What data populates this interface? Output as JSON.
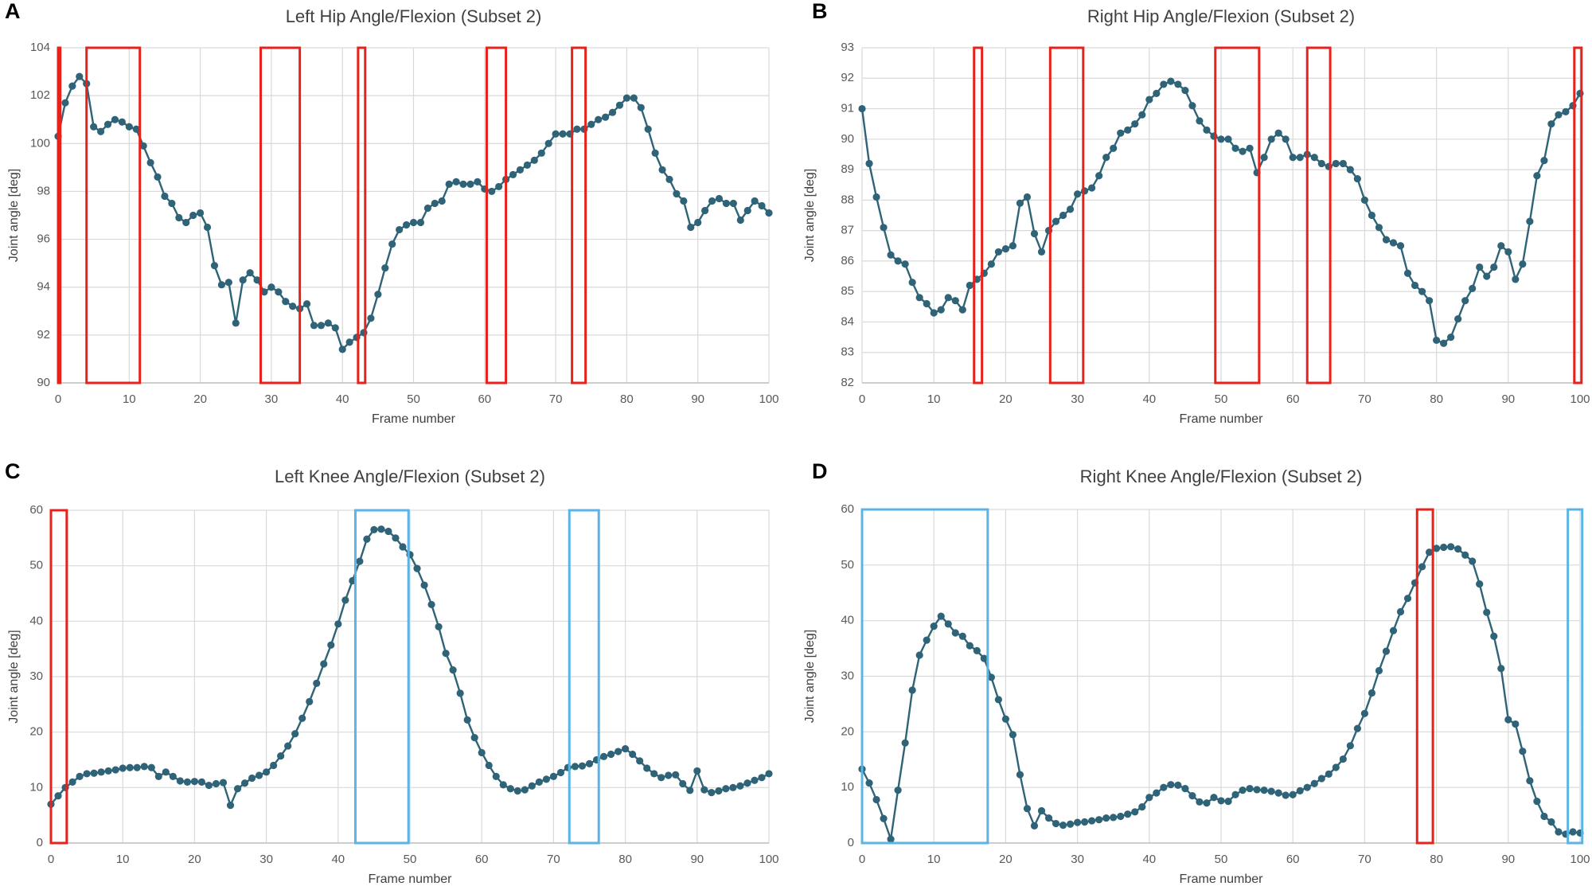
{
  "chart_data": [
    {
      "type": "line",
      "panel_label": "A",
      "title": "Left Hip Angle/Flexion  (Subset 2)",
      "x_label": "Frame number",
      "y_label": "Joint angle [deg]",
      "color": "#2f6478",
      "grid": true,
      "x": [
        0,
        1,
        2,
        3,
        4,
        5,
        6,
        7,
        8,
        9,
        10,
        11,
        12,
        13,
        14,
        15,
        16,
        17,
        18,
        19,
        20,
        21,
        22,
        23,
        24,
        25,
        26,
        27,
        28,
        29,
        30,
        31,
        32,
        33,
        34,
        35,
        36,
        37,
        38,
        39,
        40,
        41,
        42,
        43,
        44,
        45,
        46,
        47,
        48,
        49,
        50,
        51,
        52,
        53,
        54,
        55,
        56,
        57,
        58,
        59,
        60,
        61,
        62,
        63,
        64,
        65,
        66,
        67,
        68,
        69,
        70,
        71,
        72,
        73,
        74,
        75,
        76,
        77,
        78,
        79,
        80,
        81,
        82,
        83,
        84,
        85,
        86,
        87,
        88,
        89,
        90,
        91,
        92,
        93,
        94,
        95,
        96,
        97,
        98,
        99,
        100
      ],
      "values": [
        100.3,
        101.7,
        102.4,
        102.8,
        102.5,
        100.7,
        100.5,
        100.8,
        101.0,
        100.9,
        100.7,
        100.6,
        99.9,
        99.2,
        98.6,
        97.8,
        97.5,
        96.9,
        96.7,
        97.0,
        97.1,
        96.5,
        94.9,
        94.1,
        94.2,
        92.5,
        94.3,
        94.6,
        94.3,
        93.8,
        94.0,
        93.8,
        93.4,
        93.2,
        93.1,
        93.3,
        92.4,
        92.4,
        92.5,
        92.3,
        91.4,
        91.7,
        91.9,
        92.1,
        92.7,
        93.7,
        94.8,
        95.8,
        96.4,
        96.6,
        96.7,
        96.7,
        97.3,
        97.5,
        97.6,
        98.3,
        98.4,
        98.3,
        98.3,
        98.4,
        98.1,
        98.0,
        98.2,
        98.5,
        98.7,
        98.9,
        99.1,
        99.3,
        99.6,
        100.0,
        100.4,
        100.4,
        100.4,
        100.6,
        100.6,
        100.8,
        101.0,
        101.1,
        101.3,
        101.6,
        101.9,
        101.9,
        101.5,
        100.6,
        99.6,
        98.9,
        98.5,
        97.9,
        97.6,
        96.5,
        96.7,
        97.2,
        97.6,
        97.7,
        97.5,
        97.5,
        96.8,
        97.2,
        97.6,
        97.4,
        97.1
      ],
      "xlim": [
        0,
        100
      ],
      "xticks": [
        0,
        10,
        20,
        30,
        40,
        50,
        60,
        70,
        80,
        90,
        100
      ],
      "ylim": [
        90,
        104
      ],
      "yticks": [
        90,
        92,
        94,
        96,
        98,
        100,
        102,
        104
      ],
      "highlights": [
        {
          "start": 0,
          "end": 0.3,
          "color": "#e8221b"
        },
        {
          "start": 4,
          "end": 11.5,
          "color": "#e8221b"
        },
        {
          "start": 28.5,
          "end": 34,
          "color": "#e8221b"
        },
        {
          "start": 42.2,
          "end": 43.2,
          "color": "#e8221b"
        },
        {
          "start": 60.3,
          "end": 63,
          "color": "#e8221b"
        },
        {
          "start": 72.3,
          "end": 74.2,
          "color": "#e8221b"
        }
      ]
    },
    {
      "type": "line",
      "panel_label": "B",
      "title": "Right Hip Angle/Flexion  (Subset 2)",
      "x_label": "Frame number",
      "y_label": "Joint angle [deg]",
      "color": "#2f6478",
      "grid": true,
      "x": [
        0,
        1,
        2,
        3,
        4,
        5,
        6,
        7,
        8,
        9,
        10,
        11,
        12,
        13,
        14,
        15,
        16,
        17,
        18,
        19,
        20,
        21,
        22,
        23,
        24,
        25,
        26,
        27,
        28,
        29,
        30,
        31,
        32,
        33,
        34,
        35,
        36,
        37,
        38,
        39,
        40,
        41,
        42,
        43,
        44,
        45,
        46,
        47,
        48,
        49,
        50,
        51,
        52,
        53,
        54,
        55,
        56,
        57,
        58,
        59,
        60,
        61,
        62,
        63,
        64,
        65,
        66,
        67,
        68,
        69,
        70,
        71,
        72,
        73,
        74,
        75,
        76,
        77,
        78,
        79,
        80,
        81,
        82,
        83,
        84,
        85,
        86,
        87,
        88,
        89,
        90,
        91,
        92,
        93,
        94,
        95,
        96,
        97,
        98,
        99,
        100
      ],
      "values": [
        91.0,
        89.2,
        88.1,
        87.1,
        86.2,
        86.0,
        85.9,
        85.3,
        84.8,
        84.6,
        84.3,
        84.4,
        84.8,
        84.7,
        84.4,
        85.2,
        85.4,
        85.6,
        85.9,
        86.3,
        86.4,
        86.5,
        87.9,
        88.1,
        86.9,
        86.3,
        87.0,
        87.3,
        87.5,
        87.7,
        88.2,
        88.3,
        88.4,
        88.8,
        89.4,
        89.7,
        90.2,
        90.3,
        90.5,
        90.8,
        91.3,
        91.5,
        91.8,
        91.9,
        91.8,
        91.6,
        91.1,
        90.6,
        90.3,
        90.1,
        90.0,
        90.0,
        89.7,
        89.6,
        89.7,
        88.9,
        89.4,
        90.0,
        90.2,
        90.0,
        89.4,
        89.4,
        89.5,
        89.4,
        89.2,
        89.1,
        89.2,
        89.2,
        89.0,
        88.7,
        88.0,
        87.5,
        87.1,
        86.7,
        86.6,
        86.5,
        85.6,
        85.2,
        85.0,
        84.7,
        83.4,
        83.3,
        83.5,
        84.1,
        84.7,
        85.1,
        85.8,
        85.5,
        85.8,
        86.5,
        86.3,
        85.4,
        85.9,
        87.3,
        88.8,
        89.3,
        90.5,
        90.8,
        90.9,
        91.1,
        91.5
      ],
      "xlim": [
        0,
        100
      ],
      "xticks": [
        0,
        10,
        20,
        30,
        40,
        50,
        60,
        70,
        80,
        90,
        100
      ],
      "ylim": [
        82,
        93
      ],
      "yticks": [
        82,
        83,
        84,
        85,
        86,
        87,
        88,
        89,
        90,
        91,
        92,
        93
      ],
      "highlights": [
        {
          "start": 15.6,
          "end": 16.7,
          "color": "#e8221b"
        },
        {
          "start": 26.2,
          "end": 30.8,
          "color": "#e8221b"
        },
        {
          "start": 49.2,
          "end": 55.3,
          "color": "#e8221b"
        },
        {
          "start": 62,
          "end": 65.2,
          "color": "#e8221b"
        },
        {
          "start": 99.2,
          "end": 100.2,
          "color": "#e8221b"
        }
      ]
    },
    {
      "type": "line",
      "panel_label": "C",
      "title": "Left Knee Angle/Flexion  (Subset 2)",
      "x_label": "Frame number",
      "y_label": "Joint angle [deg]",
      "color": "#2f6478",
      "grid": true,
      "x": [
        0,
        1,
        2,
        3,
        4,
        5,
        6,
        7,
        8,
        9,
        10,
        11,
        12,
        13,
        14,
        15,
        16,
        17,
        18,
        19,
        20,
        21,
        22,
        23,
        24,
        25,
        26,
        27,
        28,
        29,
        30,
        31,
        32,
        33,
        34,
        35,
        36,
        37,
        38,
        39,
        40,
        41,
        42,
        43,
        44,
        45,
        46,
        47,
        48,
        49,
        50,
        51,
        52,
        53,
        54,
        55,
        56,
        57,
        58,
        59,
        60,
        61,
        62,
        63,
        64,
        65,
        66,
        67,
        68,
        69,
        70,
        71,
        72,
        73,
        74,
        75,
        76,
        77,
        78,
        79,
        80,
        81,
        82,
        83,
        84,
        85,
        86,
        87,
        88,
        89,
        90,
        91,
        92,
        93,
        94,
        95,
        96,
        97,
        98,
        99,
        100
      ],
      "values": [
        7,
        8.5,
        10,
        11,
        12,
        12.5,
        12.6,
        12.8,
        13,
        13.2,
        13.5,
        13.6,
        13.6,
        13.8,
        13.6,
        12,
        12.8,
        12,
        11.2,
        11,
        11.1,
        11,
        10.4,
        10.7,
        10.9,
        6.8,
        9.8,
        10.8,
        11.7,
        12.2,
        12.8,
        14,
        15.7,
        17.5,
        19.7,
        22.5,
        25.5,
        28.8,
        32.3,
        35.7,
        39.5,
        43.8,
        47.3,
        50.8,
        54.8,
        56.5,
        56.6,
        56.2,
        55,
        53.4,
        52,
        49.5,
        46.5,
        43,
        39,
        34.2,
        31.2,
        27,
        22.2,
        19,
        16.3,
        14,
        12,
        10.5,
        9.8,
        9.4,
        9.6,
        10.3,
        11,
        11.5,
        12,
        12.7,
        13.6,
        13.8,
        13.9,
        14.3,
        15,
        15.6,
        16,
        16.5,
        17,
        16,
        14.8,
        13.5,
        12.5,
        11.8,
        12.2,
        12.3,
        10.7,
        9.5,
        13,
        9.6,
        9.1,
        9.4,
        9.8,
        10,
        10.3,
        10.8,
        11.3,
        11.8,
        12.5
      ],
      "xlim": [
        0,
        100
      ],
      "xticks": [
        0,
        10,
        20,
        30,
        40,
        50,
        60,
        70,
        80,
        90,
        100
      ],
      "ylim": [
        0,
        60
      ],
      "yticks": [
        0,
        10,
        20,
        30,
        40,
        50,
        60
      ],
      "highlights": [
        {
          "start": 0,
          "end": 2.2,
          "color": "#e8221b"
        },
        {
          "start": 42.4,
          "end": 49.8,
          "color": "#5ab4e5"
        },
        {
          "start": 72.2,
          "end": 76.3,
          "color": "#5ab4e5"
        }
      ]
    },
    {
      "type": "line",
      "panel_label": "D",
      "title": "Right Knee Angle/Flexion  (Subset 2)",
      "x_label": "Frame number",
      "y_label": "Joint angle [deg]",
      "color": "#2f6478",
      "grid": true,
      "x": [
        0,
        1,
        2,
        3,
        4,
        5,
        6,
        7,
        8,
        9,
        10,
        11,
        12,
        13,
        14,
        15,
        16,
        17,
        18,
        19,
        20,
        21,
        22,
        23,
        24,
        25,
        26,
        27,
        28,
        29,
        30,
        31,
        32,
        33,
        34,
        35,
        36,
        37,
        38,
        39,
        40,
        41,
        42,
        43,
        44,
        45,
        46,
        47,
        48,
        49,
        50,
        51,
        52,
        53,
        54,
        55,
        56,
        57,
        58,
        59,
        60,
        61,
        62,
        63,
        64,
        65,
        66,
        67,
        68,
        69,
        70,
        71,
        72,
        73,
        74,
        75,
        76,
        77,
        78,
        79,
        80,
        81,
        82,
        83,
        84,
        85,
        86,
        87,
        88,
        89,
        90,
        91,
        92,
        93,
        94,
        95,
        96,
        97,
        98,
        99,
        100
      ],
      "values": [
        13.3,
        10.8,
        7.8,
        4.4,
        0.7,
        9.5,
        18,
        27.5,
        33.8,
        36.5,
        39,
        40.8,
        39.4,
        37.8,
        37.2,
        35.5,
        34.6,
        33.2,
        29.8,
        25.8,
        22.3,
        19.5,
        12.3,
        6.2,
        3.1,
        5.8,
        4.5,
        3.5,
        3.2,
        3.4,
        3.7,
        3.8,
        4,
        4.2,
        4.5,
        4.6,
        4.8,
        5.2,
        5.6,
        6.5,
        8.2,
        9,
        10,
        10.5,
        10.4,
        9.8,
        8.5,
        7.4,
        7.2,
        8.2,
        7.6,
        7.5,
        8.7,
        9.5,
        9.8,
        9.6,
        9.5,
        9.3,
        9,
        8.6,
        8.7,
        9.4,
        10,
        10.7,
        11.6,
        12.4,
        13.6,
        15.1,
        17.5,
        20.6,
        23.3,
        27,
        31,
        34.5,
        38.2,
        41.6,
        44,
        46.8,
        49.7,
        52.3,
        53,
        53.2,
        53.3,
        52.9,
        51.8,
        50.7,
        46.6,
        41.5,
        37.2,
        31.4,
        22.2,
        21.4,
        16.5,
        11.2,
        7.5,
        4.8,
        3.8,
        2,
        1.6,
        2,
        1.8
      ],
      "xlim": [
        0,
        100
      ],
      "xticks": [
        0,
        10,
        20,
        30,
        40,
        50,
        60,
        70,
        80,
        90,
        100
      ],
      "ylim": [
        0,
        60
      ],
      "yticks": [
        0,
        10,
        20,
        30,
        40,
        50,
        60
      ],
      "highlights": [
        {
          "start": 0,
          "end": 17.5,
          "color": "#5ab4e5"
        },
        {
          "start": 77.3,
          "end": 79.5,
          "color": "#e8221b"
        },
        {
          "start": 98.3,
          "end": 100.3,
          "color": "#5ab4e5"
        }
      ]
    }
  ]
}
